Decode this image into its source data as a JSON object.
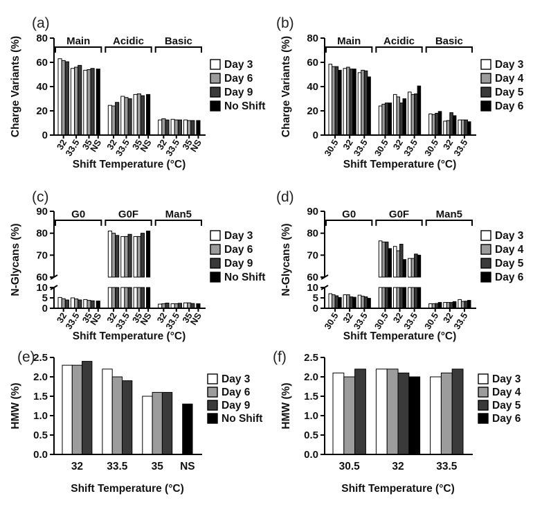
{
  "figure": {
    "background": "#ffffff",
    "xlabel_shared": "Shift Temperature (°C)"
  },
  "chart_data": [
    {
      "panel": "a",
      "panel_label": "(a)",
      "type": "bar",
      "ylabel": "Charge Variants (%)",
      "xlabel": "Shift Temperature (°C)",
      "yaxis": {
        "kind": "linear",
        "min": 0,
        "max": 80,
        "ticks": [
          0,
          20,
          40,
          60,
          80
        ],
        "tick_labels": [
          "0",
          "20",
          "40",
          "60",
          "80"
        ]
      },
      "series": [
        {
          "name": "Day 3",
          "color": "#ffffff"
        },
        {
          "name": "Day 6",
          "color": "#9c9c9c"
        },
        {
          "name": "Day 9",
          "color": "#3a3a3a"
        },
        {
          "name": "No Shift",
          "color": "#000000"
        }
      ],
      "legend_position": "right",
      "groups": [
        {
          "label": "Main",
          "categories": [
            {
              "x": "32",
              "values": [
                63,
                61.5,
                60.5,
                null
              ]
            },
            {
              "x": "33.5",
              "values": [
                55,
                56,
                57.5,
                null
              ]
            },
            {
              "x": "35",
              "values": [
                53.5,
                54,
                55,
                null
              ]
            },
            {
              "x": "NS",
              "values": [
                null,
                null,
                null,
                54.5
              ]
            }
          ]
        },
        {
          "label": "Acidic",
          "categories": [
            {
              "x": "32",
              "values": [
                24.5,
                24,
                27,
                null
              ]
            },
            {
              "x": "33.5",
              "values": [
                32,
                31,
                30,
                null
              ]
            },
            {
              "x": "35",
              "values": [
                33.5,
                34,
                32.5,
                null
              ]
            },
            {
              "x": "NS",
              "values": [
                null,
                null,
                null,
                33.5
              ]
            }
          ]
        },
        {
          "label": "Basic",
          "categories": [
            {
              "x": "32",
              "values": [
                12.5,
                13.5,
                12.5,
                null
              ]
            },
            {
              "x": "33.5",
              "values": [
                13,
                12.5,
                12.5,
                null
              ]
            },
            {
              "x": "35",
              "values": [
                12.5,
                12,
                12,
                null
              ]
            },
            {
              "x": "NS",
              "values": [
                null,
                null,
                null,
                12
              ]
            }
          ]
        }
      ]
    },
    {
      "panel": "b",
      "panel_label": "(b)",
      "type": "bar",
      "ylabel": "Charge Variants (%)",
      "xlabel": "Shift Temperature (°C)",
      "yaxis": {
        "kind": "linear",
        "min": 0,
        "max": 80,
        "ticks": [
          0,
          20,
          40,
          60,
          80
        ],
        "tick_labels": [
          "0",
          "20",
          "40",
          "60",
          "80"
        ]
      },
      "series": [
        {
          "name": "Day 3",
          "color": "#ffffff"
        },
        {
          "name": "Day 4",
          "color": "#9c9c9c"
        },
        {
          "name": "Day 5",
          "color": "#3a3a3a"
        },
        {
          "name": "Day 6",
          "color": "#000000"
        }
      ],
      "legend_position": "right",
      "groups": [
        {
          "label": "Main",
          "categories": [
            {
              "x": "30.5",
              "values": [
                58.5,
                56.5,
                56.5,
                53.5
              ]
            },
            {
              "x": "32",
              "values": [
                55,
                56,
                54.5,
                54.5
              ]
            },
            {
              "x": "33.5",
              "values": [
                51.5,
                53.5,
                53,
                48
              ]
            }
          ]
        },
        {
          "label": "Acidic",
          "categories": [
            {
              "x": "30.5",
              "values": [
                24,
                25.5,
                26.5,
                26.5
              ]
            },
            {
              "x": "32",
              "values": [
                33.5,
                31.5,
                26.5,
                30
              ]
            },
            {
              "x": "33.5",
              "values": [
                35.5,
                33.5,
                34,
                40.5
              ]
            }
          ]
        },
        {
          "label": "Basic",
          "categories": [
            {
              "x": "30.5",
              "values": [
                17.5,
                17,
                18,
                19.5
              ]
            },
            {
              "x": "32",
              "values": [
                11.5,
                12,
                18.5,
                16
              ]
            },
            {
              "x": "33.5",
              "values": [
                12.5,
                12.5,
                12.5,
                11
              ]
            }
          ]
        }
      ]
    },
    {
      "panel": "c",
      "panel_label": "(c)",
      "type": "bar",
      "ylabel": "N-Glycans (%)",
      "xlabel": "Shift Temperature (°C)",
      "yaxis": {
        "kind": "broken",
        "segments": [
          {
            "min": 0,
            "max": 10,
            "ticks": [
              0,
              5,
              10
            ],
            "tick_labels": [
              "0",
              "5",
              "10"
            ]
          },
          {
            "min": 60,
            "max": 90,
            "ticks": [
              60,
              70,
              80,
              90
            ],
            "tick_labels": [
              "60",
              "70",
              "80",
              "90"
            ]
          }
        ]
      },
      "series": [
        {
          "name": "Day 3",
          "color": "#ffffff"
        },
        {
          "name": "Day 6",
          "color": "#9c9c9c"
        },
        {
          "name": "Day 9",
          "color": "#3a3a3a"
        },
        {
          "name": "No Shift",
          "color": "#000000"
        }
      ],
      "legend_position": "right",
      "groups": [
        {
          "label": "G0",
          "categories": [
            {
              "x": "32",
              "values": [
                5.2,
                4.6,
                4,
                null
              ]
            },
            {
              "x": "33.5",
              "values": [
                5,
                4.5,
                4,
                null
              ]
            },
            {
              "x": "35",
              "values": [
                4.2,
                3.8,
                3.6,
                null
              ]
            },
            {
              "x": "NS",
              "values": [
                null,
                null,
                null,
                3.5
              ]
            }
          ]
        },
        {
          "label": "G0F",
          "categories": [
            {
              "x": "32",
              "values": [
                81,
                80,
                79,
                null
              ]
            },
            {
              "x": "33.5",
              "values": [
                78.5,
                78.5,
                79.5,
                null
              ]
            },
            {
              "x": "35",
              "values": [
                78.5,
                78.5,
                80,
                null
              ]
            },
            {
              "x": "NS",
              "values": [
                null,
                null,
                null,
                81
              ]
            }
          ]
        },
        {
          "label": "Man5",
          "categories": [
            {
              "x": "32",
              "values": [
                2,
                2.2,
                2.5,
                null
              ]
            },
            {
              "x": "33.5",
              "values": [
                2.2,
                2.2,
                2.4,
                null
              ]
            },
            {
              "x": "35",
              "values": [
                2.6,
                2.6,
                2.3,
                null
              ]
            },
            {
              "x": "NS",
              "values": [
                null,
                null,
                null,
                2.2
              ]
            }
          ]
        }
      ]
    },
    {
      "panel": "d",
      "panel_label": "(d)",
      "type": "bar",
      "ylabel": "N-Glycans (%)",
      "xlabel": "Shift Temperature (°C)",
      "yaxis": {
        "kind": "broken",
        "segments": [
          {
            "min": 0,
            "max": 10,
            "ticks": [
              0,
              5,
              10
            ],
            "tick_labels": [
              "0",
              "5",
              "10"
            ]
          },
          {
            "min": 60,
            "max": 90,
            "ticks": [
              60,
              70,
              80,
              90
            ],
            "tick_labels": [
              "60",
              "70",
              "80",
              "90"
            ]
          }
        ]
      },
      "series": [
        {
          "name": "Day 3",
          "color": "#ffffff"
        },
        {
          "name": "Day 4",
          "color": "#9c9c9c"
        },
        {
          "name": "Day 5",
          "color": "#3a3a3a"
        },
        {
          "name": "Day 6",
          "color": "#000000"
        }
      ],
      "legend_position": "right",
      "groups": [
        {
          "label": "G0",
          "categories": [
            {
              "x": "30.5",
              "values": [
                7,
                6.5,
                6,
                5.2
              ]
            },
            {
              "x": "32",
              "values": [
                6.5,
                6.5,
                5.5,
                5.3
              ]
            },
            {
              "x": "33.5",
              "values": [
                6.3,
                5.8,
                5.5,
                4.8
              ]
            }
          ]
        },
        {
          "label": "G0F",
          "categories": [
            {
              "x": "30.5",
              "values": [
                76.5,
                76,
                76,
                73
              ]
            },
            {
              "x": "32",
              "values": [
                74,
                72,
                75,
                68
              ]
            },
            {
              "x": "33.5",
              "values": [
                68.5,
                68.5,
                70.5,
                70
              ]
            }
          ]
        },
        {
          "label": "Man5",
          "categories": [
            {
              "x": "30.5",
              "values": [
                2.2,
                2.2,
                2.3,
                2.8
              ]
            },
            {
              "x": "32",
              "values": [
                2.8,
                2.8,
                2.8,
                3.2
              ]
            },
            {
              "x": "33.5",
              "values": [
                4.2,
                3.3,
                3.4,
                3.8
              ]
            }
          ]
        }
      ]
    },
    {
      "panel": "e",
      "panel_label": "(e)",
      "type": "bar",
      "ylabel": "HMW (%)",
      "xlabel": "Shift Temperature (°C)",
      "yaxis": {
        "kind": "linear",
        "min": 0,
        "max": 2.5,
        "ticks": [
          0,
          0.5,
          1,
          1.5,
          2,
          2.5
        ],
        "tick_labels": [
          "0.0",
          "0.5",
          "1.0",
          "1.5",
          "2.0",
          "2.5"
        ]
      },
      "series": [
        {
          "name": "Day 3",
          "color": "#ffffff"
        },
        {
          "name": "Day 6",
          "color": "#9c9c9c"
        },
        {
          "name": "Day 9",
          "color": "#3a3a3a"
        },
        {
          "name": "No Shift",
          "color": "#000000"
        }
      ],
      "legend_position": "right",
      "groups": [
        {
          "label": null,
          "categories": [
            {
              "x": "32",
              "values": [
                2.3,
                2.3,
                2.4,
                null
              ]
            },
            {
              "x": "33.5",
              "values": [
                2.2,
                2.0,
                1.9,
                null
              ]
            },
            {
              "x": "35",
              "values": [
                1.5,
                1.6,
                1.6,
                null
              ]
            },
            {
              "x": "NS",
              "values": [
                null,
                null,
                null,
                1.3
              ]
            }
          ]
        }
      ]
    },
    {
      "panel": "f",
      "panel_label": "(f)",
      "type": "bar",
      "ylabel": "HMW (%)",
      "xlabel": "Shift Temperature (°C)",
      "yaxis": {
        "kind": "linear",
        "min": 0,
        "max": 2.5,
        "ticks": [
          0,
          0.5,
          1,
          1.5,
          2,
          2.5
        ],
        "tick_labels": [
          "0.0",
          "0.5",
          "1.0",
          "1.5",
          "2.0",
          "2.5"
        ]
      },
      "series": [
        {
          "name": "Day 3",
          "color": "#ffffff"
        },
        {
          "name": "Day 4",
          "color": "#9c9c9c"
        },
        {
          "name": "Day 5",
          "color": "#3a3a3a"
        },
        {
          "name": "Day 6",
          "color": "#000000"
        }
      ],
      "legend_position": "right",
      "groups": [
        {
          "label": null,
          "categories": [
            {
              "x": "30.5",
              "values": [
                2.1,
                2.0,
                2.2,
                null
              ]
            },
            {
              "x": "32",
              "values": [
                2.2,
                2.2,
                2.1,
                2.0
              ]
            },
            {
              "x": "33.5",
              "values": [
                2.0,
                2.1,
                2.2,
                null
              ]
            }
          ]
        }
      ]
    }
  ]
}
